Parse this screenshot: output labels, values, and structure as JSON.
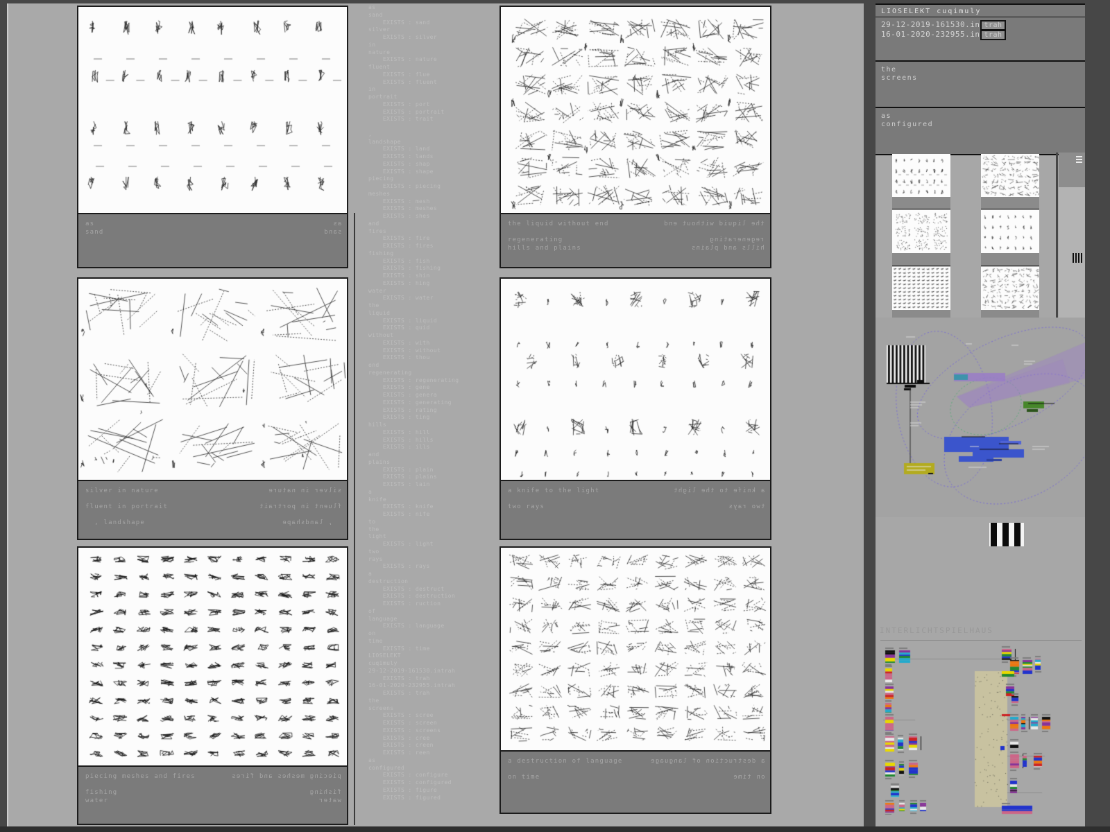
{
  "app": {
    "title": "LIOSELEKT cuqimuly",
    "interlicht_title": "INTERLICHTSPIELHAUS"
  },
  "palette": {
    "main_bg": "#a9a9a9",
    "caption_bar": "#7b7b7b",
    "sidebar_dark": "#7a7a7a",
    "ink": "#1b1b1b",
    "purple": "#7668d8",
    "beam": "#9a7cc8",
    "teal": "#3e93ab",
    "green_dash": "#55aa77",
    "green": "#47872a",
    "blue": "#3b55cc",
    "yellow": "#b3ab1f",
    "beige": "#c8c2a0",
    "bar_red": "#cc2222",
    "bar_blue": "#2233cc",
    "bar_yellow": "#e8d800",
    "bar_green": "#228833",
    "bar_purple": "#883399",
    "bar_orange": "#ee7711"
  },
  "panels": [
    {
      "id": "as-sand",
      "caption_lines": [
        "as",
        "sand"
      ]
    },
    {
      "id": "silver-in-nature",
      "caption_lines": [
        "silver in nature",
        "",
        "fluent in portrait",
        "",
        "  , landshape"
      ]
    },
    {
      "id": "piecing-meshes-and-fires",
      "caption_lines": [
        "piecing meshes and fires",
        "",
        "fishing",
        "water"
      ]
    },
    {
      "id": "the-liquid-without-end",
      "caption_lines": [
        "the liquid without end",
        "",
        "regenerating",
        "hills and plains"
      ]
    },
    {
      "id": "a-knife-to-the-light",
      "caption_lines": [
        "a knife to the light",
        "",
        "two rays"
      ]
    },
    {
      "id": "a-destruction-of-language",
      "caption_lines": [
        "a destruction of language",
        "",
        "on time"
      ]
    }
  ],
  "word_list": {
    "lines": [
      "as",
      "sand",
      "    EXISTS : sand",
      "silver",
      "    EXISTS : silver",
      "in",
      "nature",
      "    EXISTS : nature",
      "fluent",
      "    EXISTS : flue",
      "    EXISTS : fluent",
      "in",
      "portrait",
      "    EXISTS : port",
      "    EXISTS : portrait",
      "    EXISTS : trait",
      "",
      ",",
      "landshape",
      "    EXISTS : land",
      "    EXISTS : lands",
      "    EXISTS : shap",
      "    EXISTS : shape",
      "piecing",
      "    EXISTS : piecing",
      "meshes",
      "    EXISTS : mesh",
      "    EXISTS : meshes",
      "    EXISTS : shes",
      "and",
      "fires",
      "    EXISTS : fire",
      "    EXISTS : fires",
      "fishing",
      "    EXISTS : fish",
      "    EXISTS : fishing",
      "    EXISTS : shin",
      "    EXISTS : hing",
      "water",
      "    EXISTS : water",
      "the",
      "liquid",
      "    EXISTS : liquid",
      "    EXISTS : quid",
      "without",
      "    EXISTS : with",
      "    EXISTS : without",
      "    EXISTS : thou",
      "end",
      "regenerating",
      "    EXISTS : regenerating",
      "    EXISTS : gene",
      "    EXISTS : genera",
      "    EXISTS : generating",
      "    EXISTS : rating",
      "    EXISTS : ting",
      "hills",
      "    EXISTS : hill",
      "    EXISTS : hills",
      "    EXISTS : ills",
      "and",
      "plains",
      "    EXISTS : plain",
      "    EXISTS : plains",
      "    EXISTS : lain",
      "a",
      "knife",
      "    EXISTS : knife",
      "    EXISTS : nife",
      "to",
      "the",
      "light",
      "    EXISTS : light",
      "two",
      "rays",
      "    EXISTS : rays",
      "a",
      "destruction",
      "    EXISTS : destruct",
      "    EXISTS : destruction",
      "    EXISTS : ruction",
      "of",
      "language",
      "    EXISTS : language",
      "on",
      "time",
      "    EXISTS : time",
      "LIOSELEKT",
      "cuqimuly",
      "29-12-2019-161530.intrah",
      "    EXISTS : trah",
      "16-01-2020-232955.intrah",
      "    EXISTS : trah",
      "the",
      "screens",
      "    EXISTS : scree",
      "    EXISTS : screen",
      "    EXISTS : screens",
      "    EXISTS : cree",
      "    EXISTS : creen",
      "    EXISTS : reen",
      "as",
      "configured",
      "    EXISTS : configure",
      "    EXISTS : configured",
      "    EXISTS : figure",
      "    EXISTS : figured"
    ]
  },
  "sidebar": {
    "files": [
      {
        "name": "29-12-2019-161530.in",
        "tag": "trah"
      },
      {
        "name": "16-01-2020-232955.in",
        "tag": "trah"
      }
    ],
    "panes": [
      {
        "lines": [
          "the",
          "screens"
        ]
      },
      {
        "lines": [
          "as",
          "configured"
        ]
      }
    ]
  }
}
